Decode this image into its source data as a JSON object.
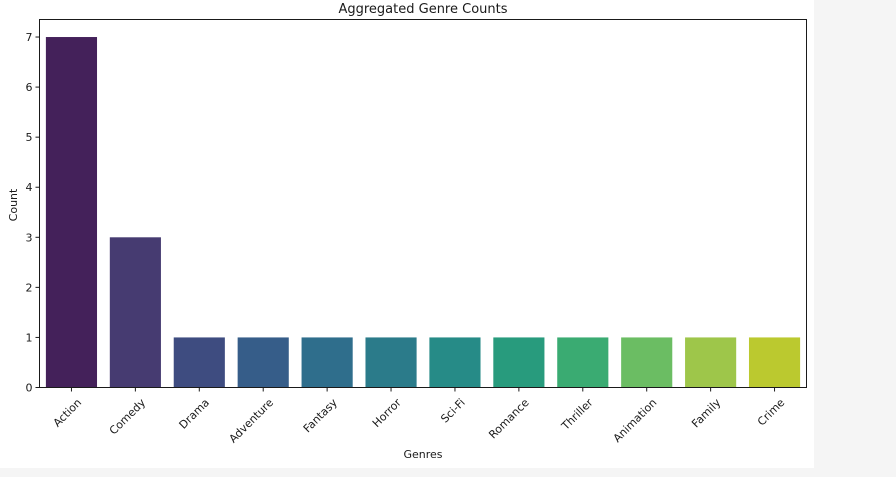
{
  "chart_data": {
    "type": "bar",
    "title": "Aggregated Genre Counts",
    "xlabel": "Genres",
    "ylabel": "Count",
    "categories": [
      "Action",
      "Comedy",
      "Drama",
      "Adventure",
      "Fantasy",
      "Horror",
      "Sci-Fi",
      "Romance",
      "Thriller",
      "Animation",
      "Family",
      "Crime"
    ],
    "values": [
      7,
      3,
      1,
      1,
      1,
      1,
      1,
      1,
      1,
      1,
      1,
      1
    ],
    "ylim": [
      0,
      7.35
    ],
    "yticks": [
      0,
      1,
      2,
      3,
      4,
      5,
      6,
      7
    ],
    "grid": false,
    "legend": "none",
    "colors": [
      "#44215a",
      "#463b71",
      "#3e4c80",
      "#365d89",
      "#2f6e8c",
      "#2b7b8a",
      "#268b87",
      "#289b7d",
      "#3aab72",
      "#6bbd63",
      "#9ec64a",
      "#bbc92f"
    ]
  }
}
